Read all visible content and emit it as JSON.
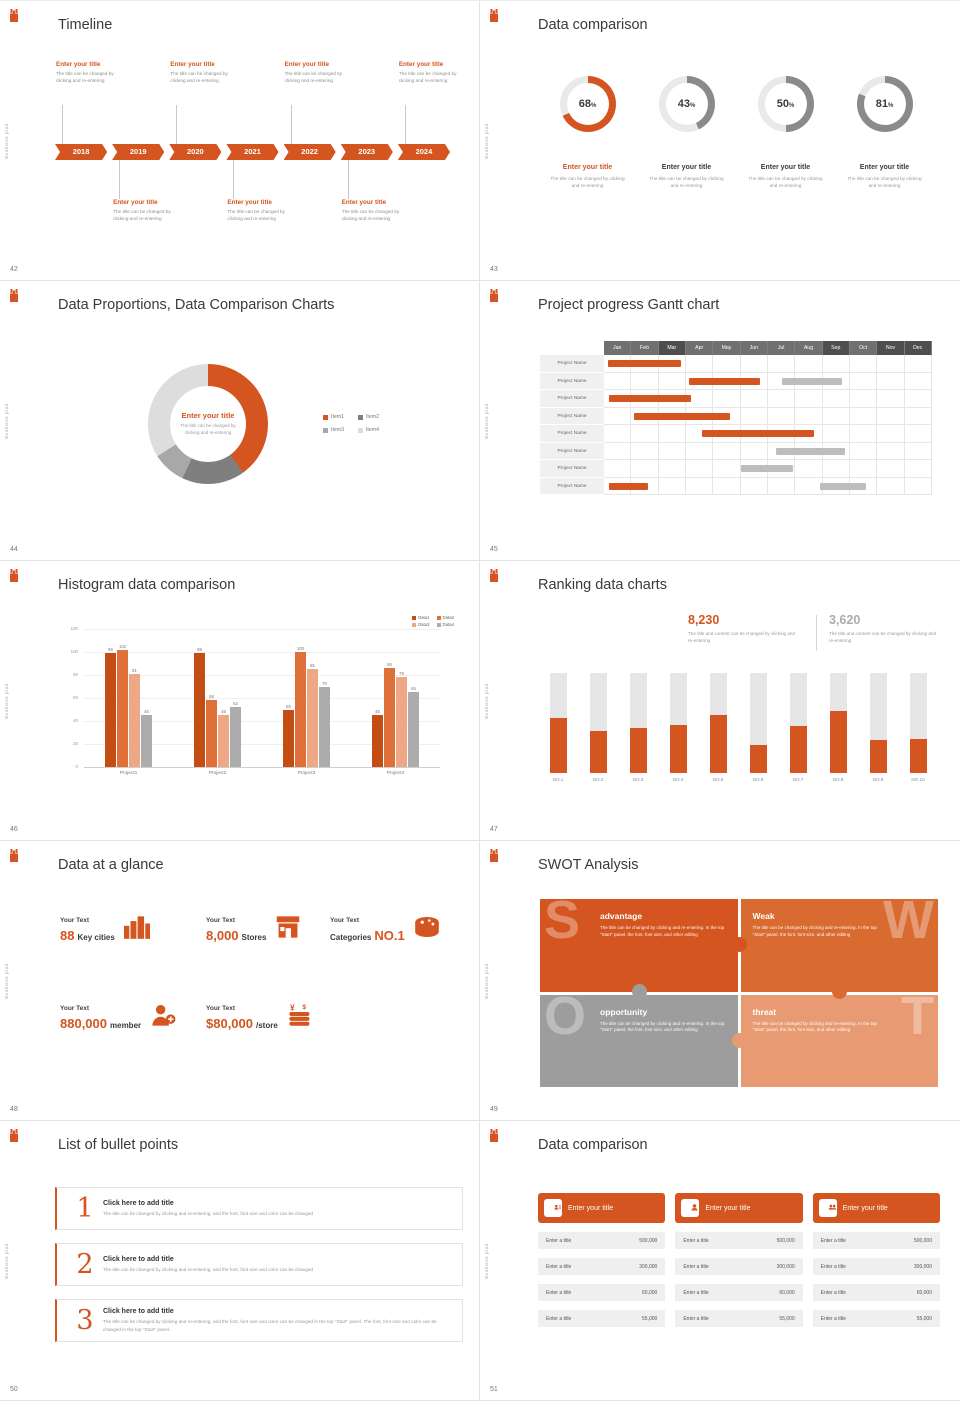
{
  "meta": {
    "sidebar_text": "Business plan",
    "accent": "#D4551F"
  },
  "slide42": {
    "number": "42",
    "title": "Timeline",
    "item_title": "Enter your title",
    "item_body": "The title can be changed by clicking and re-entering",
    "years": [
      "2018",
      "2019",
      "2020",
      "2021",
      "2022",
      "2023",
      "2024"
    ],
    "top_slots": [
      0,
      2,
      4,
      6
    ],
    "bottom_slots": [
      1,
      3,
      5
    ]
  },
  "slide43": {
    "number": "43",
    "title": "Data comparison",
    "rings": [
      {
        "percent": 68,
        "title": "Enter your title",
        "body": "The title can be changed by clicking and re-entering",
        "highlight": true
      },
      {
        "percent": 43,
        "title": "Enter your title",
        "body": "The title can be changed by clicking and re-entering",
        "highlight": false
      },
      {
        "percent": 50,
        "title": "Enter your title",
        "body": "The title can be changed by clicking and re-entering",
        "highlight": false
      },
      {
        "percent": 81,
        "title": "Enter your title",
        "body": "The title can be changed by clicking and re-entering",
        "highlight": false
      }
    ]
  },
  "slide44": {
    "number": "44",
    "title": "Data Proportions, Data Comparison Charts",
    "center_title": "Enter your title",
    "center_body": "The title can be changed by clicking and re-entering",
    "segments": [
      {
        "label": "Item1",
        "value": 40,
        "color": "#D4551F"
      },
      {
        "label": "Item2",
        "value": 17,
        "color": "#7F7F7F"
      },
      {
        "label": "Item3",
        "value": 9,
        "color": "#A8A8A8"
      },
      {
        "label": "Item4",
        "value": 34,
        "color": "#DDDDDD"
      }
    ]
  },
  "slide45": {
    "number": "45",
    "title": "Project progress Gantt chart",
    "months": [
      "Jan",
      "Feb",
      "Mar",
      "Apr",
      "May",
      "Jun",
      "Jul",
      "Aug",
      "Sep",
      "Oct",
      "Nov",
      "Dec"
    ],
    "dark_months": [
      2,
      8,
      10,
      11
    ],
    "row_label": "Project Name",
    "rows": [
      {
        "bars": [
          {
            "start": 0.15,
            "end": 2.8,
            "color": "orange"
          }
        ]
      },
      {
        "bars": [
          {
            "start": 3.1,
            "end": 5.7,
            "color": "orange"
          },
          {
            "start": 6.5,
            "end": 8.7,
            "color": "gray"
          }
        ]
      },
      {
        "bars": [
          {
            "start": 0.2,
            "end": 3.2,
            "color": "orange"
          }
        ]
      },
      {
        "bars": [
          {
            "start": 1.1,
            "end": 4.6,
            "color": "orange"
          }
        ]
      },
      {
        "bars": [
          {
            "start": 3.6,
            "end": 7.7,
            "color": "orange"
          }
        ]
      },
      {
        "bars": [
          {
            "start": 6.3,
            "end": 8.8,
            "color": "gray"
          }
        ]
      },
      {
        "bars": [
          {
            "start": 5.0,
            "end": 6.9,
            "color": "gray"
          }
        ]
      },
      {
        "bars": [
          {
            "start": 0.2,
            "end": 1.6,
            "color": "orange"
          },
          {
            "start": 7.9,
            "end": 9.6,
            "color": "gray"
          }
        ]
      }
    ]
  },
  "slide46": {
    "number": "46",
    "title": "Histogram data comparison",
    "chart": {
      "type": "bar",
      "categories": [
        "Project1",
        "Project2",
        "Project3",
        "Project4"
      ],
      "series": [
        {
          "name": "Data1",
          "color": "#C44D13",
          "values": [
            99,
            99,
            50,
            45
          ]
        },
        {
          "name": "Data2",
          "color": "#E0703A",
          "values": [
            102,
            58,
            100,
            86
          ]
        },
        {
          "name": "Data3",
          "color": "#EFA885",
          "values": [
            81,
            45,
            85,
            78
          ]
        },
        {
          "name": "Data4",
          "color": "#ACACAC",
          "values": [
            45,
            52,
            70,
            65
          ]
        }
      ],
      "ymax": 120,
      "ystep": 20
    }
  },
  "slide47": {
    "number": "47",
    "title": "Ranking data charts",
    "stat1": {
      "value": "8,230",
      "body": "The title and content can be changed by clicking and re-entering"
    },
    "stat2": {
      "value": "3,620",
      "body": "The title and content can be changed by clicking and re-entering"
    },
    "bars": [
      {
        "label": "NO.1",
        "fill": 55
      },
      {
        "label": "NO.2",
        "fill": 42
      },
      {
        "label": "NO.3",
        "fill": 45
      },
      {
        "label": "NO.4",
        "fill": 48
      },
      {
        "label": "NO.5",
        "fill": 58
      },
      {
        "label": "NO.6",
        "fill": 28
      },
      {
        "label": "NO.7",
        "fill": 47
      },
      {
        "label": "NO.8",
        "fill": 62
      },
      {
        "label": "NO.9",
        "fill": 33
      },
      {
        "label": "NO.10",
        "fill": 34
      }
    ]
  },
  "slide48": {
    "number": "48",
    "title": "Data at a glance",
    "items": [
      {
        "label": "Your Text",
        "pre": "",
        "big": "88",
        "post": "Key cities",
        "icon": "city-icon"
      },
      {
        "label": "Your Text",
        "pre": "",
        "big": "8,000",
        "post": "Stores",
        "icon": "store-icon"
      },
      {
        "label": "Your Text",
        "pre": "Categories",
        "big": "NO.1",
        "post": "",
        "icon": "cheese-icon"
      },
      {
        "label": "Your Text",
        "pre": "",
        "big": "880,000",
        "post": "member",
        "icon": "member-icon"
      },
      {
        "label": "Your Text",
        "pre": "",
        "big": "$80,000",
        "post": "/store",
        "icon": "coins-icon"
      }
    ]
  },
  "slide49": {
    "number": "49",
    "title": "SWOT Analysis",
    "quads": [
      {
        "letter": "S",
        "name": "advantage",
        "body": "The title can be changed by clicking and re-entering. In the top \"Start\" panel, the font, font size, and other editing",
        "color": "#D4551F",
        "letter_side": "left"
      },
      {
        "letter": "W",
        "name": "Weak",
        "body": "The title can be changed by clicking and re-entering. In the top \"Start\" panel, the font, font size, and other editing",
        "color": "#D96B31",
        "letter_side": "right"
      },
      {
        "letter": "O",
        "name": "opportunity",
        "body": "The title can be changed by clicking and re-entering. In the top \"Start\" panel, the font, font size, and other editing",
        "color": "#9D9D9D",
        "letter_side": "left"
      },
      {
        "letter": "T",
        "name": "threat",
        "body": "The title can be changed by clicking and re-entering. In the top \"Start\" panel, the font, font size, and other editing",
        "color": "#E89B72",
        "letter_side": "right"
      }
    ]
  },
  "slide50": {
    "number": "50",
    "title": "List of bullet points",
    "items": [
      {
        "num": "1",
        "title": "Click here to add title",
        "body": "The title can be changed by clicking and re-entering, and the font, font size and color can be changed"
      },
      {
        "num": "2",
        "title": "Click here to add title",
        "body": "The title can be changed by clicking and re-entering, and the font, font size and color can be changed"
      },
      {
        "num": "3",
        "title": "Click here to add title",
        "body": "The title can be changed by clicking and re-entering, and the font, font size and color can be changed in the top \"Start\" panel. The font, font size and color can be changed in the top \"Start\" panel."
      }
    ]
  },
  "slide51": {
    "number": "51",
    "title": "Data comparison",
    "cards": [
      {
        "header": "Enter your title",
        "icon": "id-card-icon",
        "rows": [
          [
            "Enter a title",
            "500,000"
          ],
          [
            "Enter a title",
            "300,000"
          ],
          [
            "Enter a title",
            "60,000"
          ],
          [
            "Enter a title",
            "55,000"
          ]
        ]
      },
      {
        "header": "Enter your title",
        "icon": "person-icon",
        "rows": [
          [
            "Enter a title",
            "500,000"
          ],
          [
            "Enter a title",
            "300,000"
          ],
          [
            "Enter a title",
            "60,000"
          ],
          [
            "Enter a title",
            "55,000"
          ]
        ]
      },
      {
        "header": "Enter your title",
        "icon": "people-icon",
        "rows": [
          [
            "Enter a title",
            "500,000"
          ],
          [
            "Enter a title",
            "300,000"
          ],
          [
            "Enter a title",
            "60,000"
          ],
          [
            "Enter a title",
            "55,000"
          ]
        ]
      }
    ]
  }
}
